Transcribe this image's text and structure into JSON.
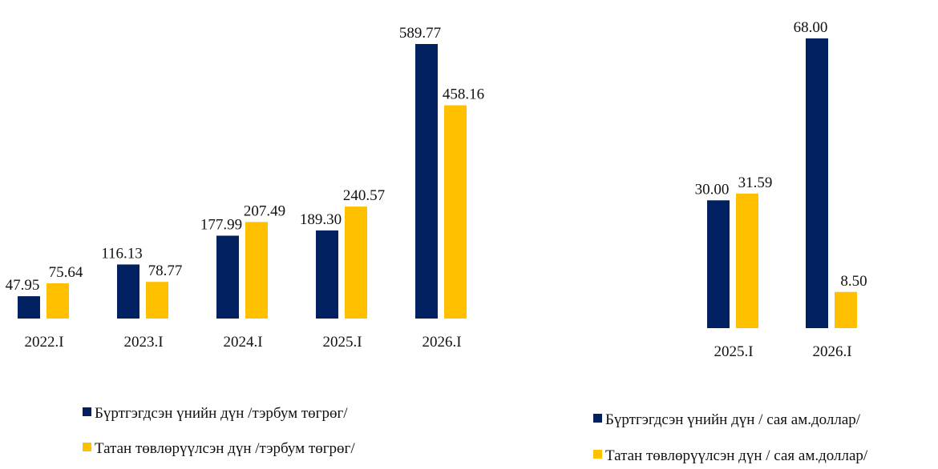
{
  "chart_data": [
    {
      "type": "bar",
      "categories": [
        "2022.I",
        "2023.I",
        "2024.I",
        "2025.I",
        "2026.I"
      ],
      "series": [
        {
          "name": "Бүртгэгдсэн үнийн дүн /тэрбум төгрөг/",
          "color": "#002060",
          "values": [
            47.95,
            116.13,
            177.99,
            189.3,
            589.77
          ],
          "value_labels": [
            "47.95",
            "116.13",
            "177.99",
            "189.30",
            "589.77"
          ]
        },
        {
          "name": "Татан төвлөрүүлсэн дүн /тэрбум төгрөг/",
          "color": "#FFC000",
          "values": [
            75.64,
            78.77,
            207.49,
            240.57,
            458.16
          ],
          "value_labels": [
            "75.64",
            "78.77",
            "207.49",
            "240.57",
            "458.16"
          ]
        }
      ]
    },
    {
      "type": "bar",
      "categories": [
        "2025.I",
        "2026.I"
      ],
      "series": [
        {
          "name": "Бүртгэгдсэн үнийн дүн / сая ам.доллар/",
          "color": "#002060",
          "values": [
            30.0,
            68.0
          ],
          "value_labels": [
            "30.00",
            "68.00"
          ]
        },
        {
          "name": "Татан төвлөрүүлсэн дүн / сая ам.доллар/",
          "color": "#FFC000",
          "values": [
            31.59,
            8.5
          ],
          "value_labels": [
            "31.59",
            "8.50"
          ]
        }
      ]
    }
  ]
}
